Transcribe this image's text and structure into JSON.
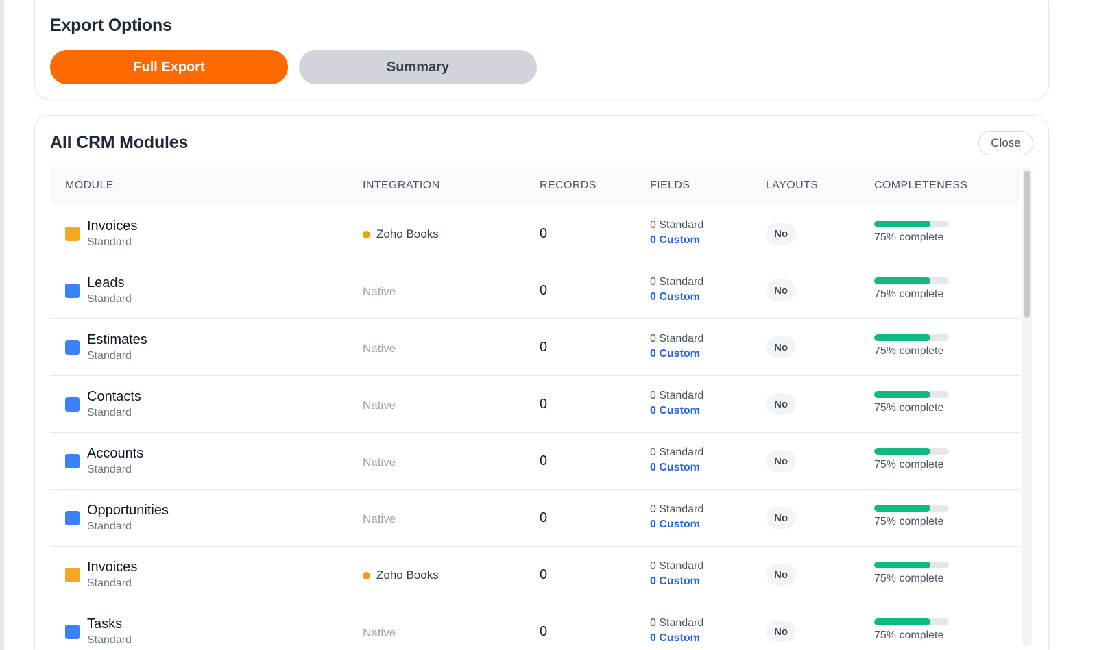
{
  "export_options": {
    "title": "Export Options",
    "full_export_label": "Full Export",
    "summary_label": "Summary"
  },
  "modules": {
    "title": "All CRM Modules",
    "close_label": "Close",
    "columns": [
      "MODULE",
      "INTEGRATION",
      "RECORDS",
      "FIELDS",
      "LAYOUTS",
      "COMPLETENESS"
    ],
    "rows": [
      {
        "name": "Invoices",
        "type": "Standard",
        "color": "#f5a623",
        "integration": "Zoho Books",
        "integration_kind": "zoho",
        "records": "0",
        "fields_standard": "0 Standard",
        "fields_custom": "0 Custom",
        "layouts": "No",
        "completeness": 0.75,
        "completeness_label": "75% complete"
      },
      {
        "name": "Leads",
        "type": "Standard",
        "color": "#3b82f6",
        "integration": "Native",
        "integration_kind": "native",
        "records": "0",
        "fields_standard": "0 Standard",
        "fields_custom": "0 Custom",
        "layouts": "No",
        "completeness": 0.75,
        "completeness_label": "75% complete"
      },
      {
        "name": "Estimates",
        "type": "Standard",
        "color": "#3b82f6",
        "integration": "Native",
        "integration_kind": "native",
        "records": "0",
        "fields_standard": "0 Standard",
        "fields_custom": "0 Custom",
        "layouts": "No",
        "completeness": 0.75,
        "completeness_label": "75% complete"
      },
      {
        "name": "Contacts",
        "type": "Standard",
        "color": "#3b82f6",
        "integration": "Native",
        "integration_kind": "native",
        "records": "0",
        "fields_standard": "0 Standard",
        "fields_custom": "0 Custom",
        "layouts": "No",
        "completeness": 0.75,
        "completeness_label": "75% complete"
      },
      {
        "name": "Accounts",
        "type": "Standard",
        "color": "#3b82f6",
        "integration": "Native",
        "integration_kind": "native",
        "records": "0",
        "fields_standard": "0 Standard",
        "fields_custom": "0 Custom",
        "layouts": "No",
        "completeness": 0.75,
        "completeness_label": "75% complete"
      },
      {
        "name": "Opportunities",
        "type": "Standard",
        "color": "#3b82f6",
        "integration": "Native",
        "integration_kind": "native",
        "records": "0",
        "fields_standard": "0 Standard",
        "fields_custom": "0 Custom",
        "layouts": "No",
        "completeness": 0.75,
        "completeness_label": "75% complete"
      },
      {
        "name": "Invoices",
        "type": "Standard",
        "color": "#f5a623",
        "integration": "Zoho Books",
        "integration_kind": "zoho",
        "records": "0",
        "fields_standard": "0 Standard",
        "fields_custom": "0 Custom",
        "layouts": "No",
        "completeness": 0.75,
        "completeness_label": "75% complete"
      },
      {
        "name": "Tasks",
        "type": "Standard",
        "color": "#3b82f6",
        "integration": "Native",
        "integration_kind": "native",
        "records": "0",
        "fields_standard": "0 Standard",
        "fields_custom": "0 Custom",
        "layouts": "No",
        "completeness": 0.75,
        "completeness_label": "75% complete"
      }
    ]
  }
}
